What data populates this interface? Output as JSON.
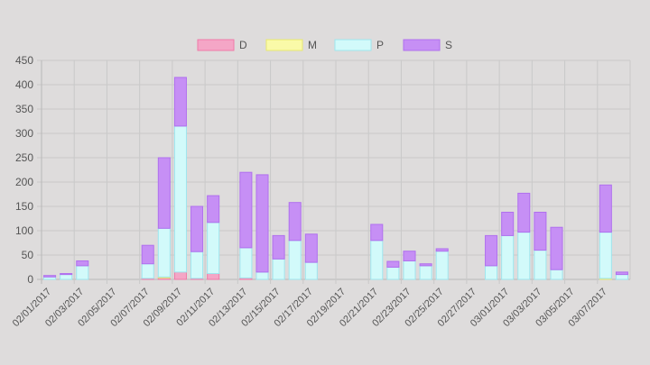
{
  "chart_data": {
    "type": "bar",
    "stacked": true,
    "title": "",
    "xlabel": "",
    "ylabel": "",
    "ylim": [
      0,
      450
    ],
    "y_ticks": [
      0,
      50,
      100,
      150,
      200,
      250,
      300,
      350,
      400,
      450
    ],
    "grid": true,
    "legend_position": "top-center",
    "categories": [
      "02/01/2017",
      "02/02/2017",
      "02/03/2017",
      "02/04/2017",
      "02/05/2017",
      "02/06/2017",
      "02/07/2017",
      "02/08/2017",
      "02/09/2017",
      "02/10/2017",
      "02/11/2017",
      "02/12/2017",
      "02/13/2017",
      "02/14/2017",
      "02/15/2017",
      "02/16/2017",
      "02/17/2017",
      "02/18/2017",
      "02/19/2017",
      "02/20/2017",
      "02/21/2017",
      "02/22/2017",
      "02/23/2017",
      "02/24/2017",
      "02/25/2017",
      "02/26/2017",
      "02/27/2017",
      "02/28/2017",
      "03/01/2017",
      "03/02/2017",
      "03/03/2017",
      "03/04/2017",
      "03/05/2017",
      "03/06/2017",
      "03/07/2017",
      "03/08/2017"
    ],
    "x_tick_labels": [
      "02/01/2017",
      "02/03/2017",
      "02/05/2017",
      "02/07/2017",
      "02/09/2017",
      "02/11/2017",
      "02/13/2017",
      "02/15/2017",
      "02/17/2017",
      "02/19/2017",
      "02/21/2017",
      "02/23/2017",
      "02/25/2017",
      "02/27/2017",
      "03/01/2017",
      "03/03/2017",
      "03/05/2017",
      "03/07/2017"
    ],
    "series": [
      {
        "name": "D",
        "fill": "#f4a6c6",
        "stroke": "#f07aa8",
        "values": [
          0,
          0,
          0,
          0,
          0,
          0,
          2,
          3,
          15,
          2,
          12,
          0,
          3,
          0,
          0,
          0,
          0,
          0,
          0,
          0,
          0,
          0,
          0,
          0,
          0,
          0,
          0,
          0,
          0,
          0,
          0,
          0,
          0,
          0,
          0,
          0
        ]
      },
      {
        "name": "M",
        "fill": "#fafaa8",
        "stroke": "#e8e870",
        "values": [
          0,
          0,
          0,
          0,
          0,
          0,
          0,
          2,
          0,
          0,
          0,
          0,
          0,
          0,
          0,
          0,
          0,
          0,
          0,
          0,
          0,
          0,
          0,
          0,
          0,
          0,
          0,
          0,
          0,
          0,
          0,
          0,
          0,
          0,
          2,
          0
        ]
      },
      {
        "name": "P",
        "fill": "#d2fafa",
        "stroke": "#9fe6ee",
        "values": [
          5,
          10,
          28,
          0,
          0,
          0,
          30,
          100,
          300,
          55,
          105,
          0,
          62,
          15,
          42,
          80,
          35,
          0,
          0,
          0,
          80,
          25,
          38,
          28,
          58,
          0,
          0,
          28,
          90,
          97,
          60,
          20,
          0,
          0,
          95,
          10
        ]
      },
      {
        "name": "S",
        "fill": "#c68ff5",
        "stroke": "#b070ee",
        "values": [
          3,
          2,
          10,
          0,
          0,
          0,
          38,
          145,
          100,
          93,
          55,
          0,
          155,
          200,
          48,
          78,
          58,
          0,
          0,
          0,
          33,
          12,
          20,
          4,
          5,
          0,
          0,
          62,
          48,
          80,
          78,
          87,
          0,
          0,
          97,
          5
        ]
      }
    ]
  }
}
